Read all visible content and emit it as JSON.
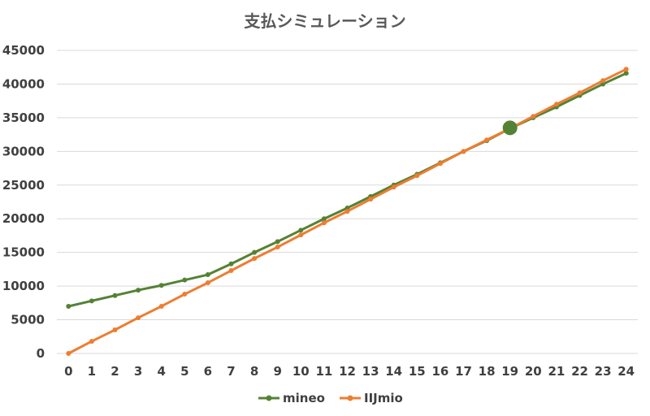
{
  "chart_data": {
    "type": "line",
    "title": "支払シミュレーション",
    "xlabel": "",
    "ylabel": "",
    "x": [
      0,
      1,
      2,
      3,
      4,
      5,
      6,
      7,
      8,
      9,
      10,
      11,
      12,
      13,
      14,
      15,
      16,
      17,
      18,
      19,
      20,
      21,
      22,
      23,
      24
    ],
    "ylim": [
      0,
      45000
    ],
    "yticks": [
      0,
      5000,
      10000,
      15000,
      20000,
      25000,
      30000,
      35000,
      40000,
      45000
    ],
    "grid": true,
    "legend_position": "bottom",
    "series": [
      {
        "name": "mineo",
        "color": "#548235",
        "values": [
          7000,
          7800,
          8600,
          9400,
          10100,
          10900,
          11700,
          13300,
          15000,
          16600,
          18300,
          20000,
          21600,
          23300,
          25000,
          26600,
          28300,
          30000,
          31600,
          33400,
          35000,
          36600,
          38300,
          40000,
          41600
        ]
      },
      {
        "name": "IIJmio",
        "color": "#ed7d31",
        "values": [
          0,
          1800,
          3500,
          5300,
          7000,
          8800,
          10500,
          12300,
          14100,
          15800,
          17600,
          19400,
          21100,
          22900,
          24700,
          26400,
          28200,
          30000,
          31700,
          33400,
          35200,
          37000,
          38700,
          40500,
          42200
        ]
      }
    ],
    "highlight": {
      "x": 19,
      "y": 33500,
      "color": "#548235"
    }
  }
}
